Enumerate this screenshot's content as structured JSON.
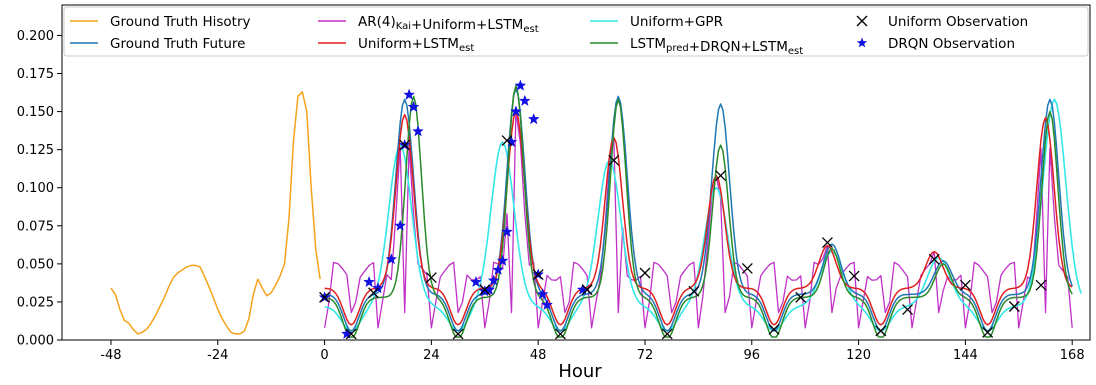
{
  "chart_data": {
    "type": "line",
    "xlabel": "Hour",
    "ylabel": "",
    "xlim": [
      -59,
      172
    ],
    "ylim": [
      0,
      0.22
    ],
    "x_ticks": [
      -48,
      -24,
      0,
      24,
      48,
      72,
      96,
      120,
      144,
      168
    ],
    "x_tick_labels": [
      "-48",
      "-24",
      "0",
      "24",
      "48",
      "72",
      "96",
      "120",
      "144",
      "168"
    ],
    "y_ticks": [
      0,
      0.025,
      0.05,
      0.075,
      0.1,
      0.125,
      0.15,
      0.175,
      0.2
    ],
    "y_tick_labels": [
      "0.000",
      "0.025",
      "0.050",
      "0.075",
      "0.100",
      "0.125",
      "0.150",
      "0.175",
      "0.200"
    ],
    "legend_position": "top",
    "legend": [
      {
        "label": "Ground Truth Hisotry",
        "sub": "",
        "tail": "",
        "color": "#f5a31a",
        "kind": "line"
      },
      {
        "label": "Ground Truth Future",
        "sub": "",
        "tail": "",
        "color": "#1f77b4",
        "kind": "line"
      },
      {
        "label": "AR(4)",
        "sub": "Kai",
        "tail": "+Uniform+LSTM",
        "sub2": "est",
        "color": "#c030c8",
        "kind": "line"
      },
      {
        "label": "Uniform+LSTM",
        "sub": "est",
        "tail": "",
        "color": "#e02020",
        "kind": "line"
      },
      {
        "label": "Uniform+GPR",
        "sub": "",
        "tail": "",
        "color": "#33e8e8",
        "kind": "line"
      },
      {
        "label": "LSTM",
        "sub": "pred",
        "tail": "+DRQN+LSTM",
        "sub2": "est",
        "color": "#2a8a2a",
        "kind": "line"
      },
      {
        "label": "Uniform Observation",
        "sub": "",
        "tail": "",
        "color": "#000000",
        "kind": "x"
      },
      {
        "label": "DRQN Observation",
        "sub": "",
        "tail": "",
        "color": "#1010e0",
        "kind": "star"
      }
    ],
    "peaks": {
      "gt_future": [
        [
          18,
          0.158
        ],
        [
          43,
          0.165
        ],
        [
          66,
          0.16
        ],
        [
          89,
          0.155
        ],
        [
          114,
          0.063
        ],
        [
          139,
          0.052
        ],
        [
          163,
          0.158
        ]
      ],
      "uniform_lstm": [
        [
          18,
          0.148
        ],
        [
          43,
          0.15
        ],
        [
          65,
          0.133
        ],
        [
          88,
          0.108
        ],
        [
          113,
          0.062
        ],
        [
          137,
          0.058
        ],
        [
          162,
          0.146
        ]
      ],
      "uniform_gpr": [
        [
          17,
          0.128
        ],
        [
          40,
          0.13
        ],
        [
          64,
          0.118
        ],
        [
          88,
          0.1
        ],
        [
          114,
          0.058
        ],
        [
          138,
          0.054
        ],
        [
          164,
          0.158
        ]
      ],
      "drqn": [
        [
          20,
          0.16
        ],
        [
          43,
          0.167
        ],
        [
          66,
          0.158
        ],
        [
          89,
          0.128
        ],
        [
          114,
          0.06
        ],
        [
          139,
          0.05
        ],
        [
          163,
          0.15
        ]
      ]
    },
    "history": {
      "x": [
        -48,
        -47,
        -46,
        -45,
        -44,
        -43,
        -42,
        -41,
        -40,
        -39,
        -38,
        -37,
        -36,
        -35,
        -34,
        -33,
        -32,
        -31,
        -30,
        -29,
        -28,
        -27,
        -26,
        -25,
        -24,
        -23,
        -22,
        -21,
        -20,
        -19,
        -18,
        -17,
        -16,
        -15,
        -14,
        -13,
        -12,
        -11,
        -10,
        -9,
        -8,
        -7,
        -6,
        -5,
        -4,
        -3,
        -2,
        -1
      ],
      "y": [
        0.034,
        0.03,
        0.02,
        0.013,
        0.011,
        0.007,
        0.004,
        0.005,
        0.007,
        0.011,
        0.016,
        0.022,
        0.028,
        0.035,
        0.041,
        0.044,
        0.046,
        0.048,
        0.049,
        0.049,
        0.048,
        0.042,
        0.035,
        0.028,
        0.02,
        0.014,
        0.009,
        0.005,
        0.004,
        0.004,
        0.006,
        0.014,
        0.03,
        0.04,
        0.034,
        0.029,
        0.031,
        0.036,
        0.042,
        0.05,
        0.08,
        0.13,
        0.16,
        0.163,
        0.15,
        0.1,
        0.06,
        0.04
      ]
    },
    "uniform_observations": {
      "x": [
        0,
        6,
        11,
        18,
        24,
        30,
        36,
        41,
        48,
        53,
        59,
        65,
        72,
        77,
        83,
        89,
        95,
        101,
        107,
        113,
        119,
        125,
        131,
        137,
        144,
        149,
        155,
        161
      ],
      "y": [
        0.028,
        0.004,
        0.031,
        0.128,
        0.041,
        0.004,
        0.033,
        0.131,
        0.043,
        0.004,
        0.033,
        0.118,
        0.044,
        0.004,
        0.032,
        0.108,
        0.047,
        0.007,
        0.028,
        0.064,
        0.042,
        0.006,
        0.02,
        0.053,
        0.036,
        0.005,
        0.022,
        0.036
      ]
    },
    "drqn_observations": {
      "x": [
        0,
        5,
        10,
        12,
        15,
        17,
        18,
        19,
        20,
        21,
        34,
        36,
        37,
        38,
        39,
        40,
        41,
        42,
        43,
        44,
        45,
        47,
        48,
        49,
        50,
        58
      ],
      "y": [
        0.028,
        0.004,
        0.038,
        0.034,
        0.053,
        0.075,
        0.128,
        0.161,
        0.153,
        0.137,
        0.038,
        0.032,
        0.033,
        0.039,
        0.046,
        0.052,
        0.071,
        0.13,
        0.15,
        0.167,
        0.157,
        0.145,
        0.043,
        0.03,
        0.023,
        0.033
      ]
    }
  }
}
